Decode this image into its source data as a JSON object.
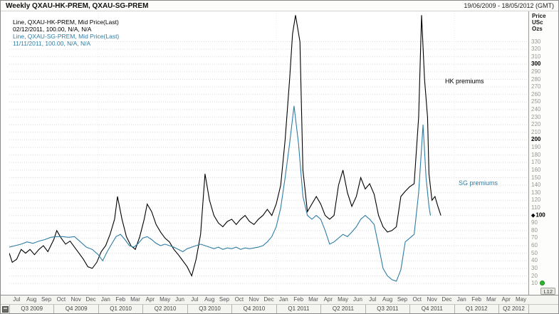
{
  "header": {
    "title": "Weekly QXAU-HK-PREM, QXAU-SG-PREM",
    "date_range": "19/06/2009 - 18/05/2012 (GMT)"
  },
  "legend": {
    "rows": [
      {
        "text": "Line, QXAU-HK-PREM, Mid Price(Last)",
        "series": "hk"
      },
      {
        "text": "02/12/2011, 100.00, N/A, N/A",
        "series": "hk"
      },
      {
        "text": "Line, QXAU-SG-PREM, Mid Price(Last)",
        "series": "sg"
      },
      {
        "text": "11/11/2011, 100.00, N/A, N/A",
        "series": "sg"
      }
    ]
  },
  "annotations": {
    "hk_label": "HK premiums",
    "sg_label": "SG premiums"
  },
  "y_axis": {
    "unit_line1": "Price",
    "unit_line2": "USc",
    "unit_line3": "Ozs"
  },
  "widgets": {
    "layout_badge": "L12",
    "status_color": "#2db52d"
  },
  "chart_data": {
    "type": "line",
    "title": "Weekly QXAU-HK-PREM, QXAU-SG-PREM",
    "ylabel": "Price USc Ozs",
    "x_range": [
      0,
      35
    ],
    "ylim": [
      -5,
      370
    ],
    "yticks": {
      "min": 10,
      "max": 330,
      "step": 10,
      "bold": [
        100,
        200,
        300
      ]
    },
    "last_price_marker": 100,
    "year_gridlines": [
      6,
      18,
      30
    ],
    "grid": "horizontal-dotted",
    "legend_position": "top-left",
    "x_axis": {
      "months": [
        "Jul",
        "Aug",
        "Sep",
        "Oct",
        "Nov",
        "Dec",
        "Jan",
        "Feb",
        "Mar",
        "Apr",
        "May",
        "Jun",
        "Jul",
        "Aug",
        "Sep",
        "Oct",
        "Nov",
        "Dec",
        "Jan",
        "Feb",
        "Mar",
        "Apr",
        "May",
        "Jun",
        "Jul",
        "Aug",
        "Sep",
        "Oct",
        "Nov",
        "Dec",
        "Jan",
        "Feb",
        "Mar",
        "Apr",
        "May"
      ],
      "quarters": [
        {
          "label": "Q3 2009",
          "months": 3
        },
        {
          "label": "Q4 2009",
          "months": 3
        },
        {
          "label": "Q1 2010",
          "months": 3
        },
        {
          "label": "Q2 2010",
          "months": 3
        },
        {
          "label": "Q3 2010",
          "months": 3
        },
        {
          "label": "Q4 2010",
          "months": 3
        },
        {
          "label": "Q1 2011",
          "months": 3
        },
        {
          "label": "Q2 2011",
          "months": 3
        },
        {
          "label": "Q3 2011",
          "months": 3
        },
        {
          "label": "Q4 2011",
          "months": 3
        },
        {
          "label": "Q1 2012",
          "months": 3
        },
        {
          "label": "Q2 2012",
          "months": 2
        }
      ]
    },
    "series": [
      {
        "name": "HK premiums",
        "instrument": "QXAU-HK-PREM",
        "color": "#000000",
        "points": [
          [
            0,
            50
          ],
          [
            0.2,
            38
          ],
          [
            0.5,
            42
          ],
          [
            0.8,
            55
          ],
          [
            1.1,
            50
          ],
          [
            1.4,
            55
          ],
          [
            1.7,
            48
          ],
          [
            2,
            55
          ],
          [
            2.3,
            60
          ],
          [
            2.6,
            52
          ],
          [
            3,
            68
          ],
          [
            3.2,
            80
          ],
          [
            3.5,
            70
          ],
          [
            3.8,
            62
          ],
          [
            4.1,
            66
          ],
          [
            4.4,
            58
          ],
          [
            4.7,
            50
          ],
          [
            5,
            42
          ],
          [
            5.3,
            32
          ],
          [
            5.6,
            30
          ],
          [
            5.9,
            38
          ],
          [
            6.2,
            52
          ],
          [
            6.5,
            60
          ],
          [
            6.8,
            75
          ],
          [
            7.1,
            95
          ],
          [
            7.3,
            125
          ],
          [
            7.6,
            95
          ],
          [
            7.9,
            72
          ],
          [
            8.2,
            60
          ],
          [
            8.5,
            55
          ],
          [
            8.8,
            72
          ],
          [
            9.1,
            95
          ],
          [
            9.3,
            115
          ],
          [
            9.6,
            105
          ],
          [
            9.9,
            88
          ],
          [
            10.2,
            78
          ],
          [
            10.5,
            70
          ],
          [
            10.8,
            65
          ],
          [
            11.1,
            55
          ],
          [
            11.4,
            48
          ],
          [
            11.7,
            40
          ],
          [
            12,
            32
          ],
          [
            12.3,
            20
          ],
          [
            12.6,
            42
          ],
          [
            12.9,
            75
          ],
          [
            13.2,
            155
          ],
          [
            13.5,
            120
          ],
          [
            13.8,
            100
          ],
          [
            14.1,
            90
          ],
          [
            14.4,
            85
          ],
          [
            14.7,
            92
          ],
          [
            15,
            95
          ],
          [
            15.3,
            88
          ],
          [
            15.6,
            95
          ],
          [
            15.9,
            100
          ],
          [
            16.2,
            92
          ],
          [
            16.5,
            88
          ],
          [
            16.8,
            95
          ],
          [
            17.1,
            100
          ],
          [
            17.4,
            108
          ],
          [
            17.7,
            100
          ],
          [
            18,
            115
          ],
          [
            18.3,
            140
          ],
          [
            18.6,
            200
          ],
          [
            18.9,
            280
          ],
          [
            19.1,
            340
          ],
          [
            19.3,
            365
          ],
          [
            19.6,
            330
          ],
          [
            19.8,
            160
          ],
          [
            20.1,
            105
          ],
          [
            20.4,
            115
          ],
          [
            20.7,
            125
          ],
          [
            21,
            115
          ],
          [
            21.3,
            100
          ],
          [
            21.6,
            95
          ],
          [
            21.9,
            100
          ],
          [
            22.2,
            140
          ],
          [
            22.5,
            160
          ],
          [
            22.8,
            130
          ],
          [
            23.1,
            112
          ],
          [
            23.4,
            125
          ],
          [
            23.7,
            150
          ],
          [
            24,
            135
          ],
          [
            24.3,
            142
          ],
          [
            24.6,
            128
          ],
          [
            24.9,
            100
          ],
          [
            25.2,
            85
          ],
          [
            25.5,
            78
          ],
          [
            25.8,
            80
          ],
          [
            26.1,
            85
          ],
          [
            26.4,
            125
          ],
          [
            26.7,
            132
          ],
          [
            27,
            138
          ],
          [
            27.3,
            142
          ],
          [
            27.6,
            230
          ],
          [
            27.8,
            365
          ],
          [
            28,
            280
          ],
          [
            28.2,
            230
          ],
          [
            28.3,
            155
          ],
          [
            28.5,
            120
          ],
          [
            28.7,
            125
          ],
          [
            28.9,
            112
          ],
          [
            29.1,
            100
          ]
        ]
      },
      {
        "name": "SG premiums",
        "instrument": "QXAU-SG-PREM",
        "color": "#2e7da4",
        "points": [
          [
            0,
            58
          ],
          [
            0.4,
            60
          ],
          [
            0.8,
            62
          ],
          [
            1.2,
            65
          ],
          [
            1.6,
            63
          ],
          [
            2,
            66
          ],
          [
            2.4,
            68
          ],
          [
            2.8,
            71
          ],
          [
            3.2,
            72
          ],
          [
            3.6,
            72
          ],
          [
            4,
            71
          ],
          [
            4.4,
            72
          ],
          [
            4.8,
            65
          ],
          [
            5.2,
            58
          ],
          [
            5.6,
            55
          ],
          [
            6,
            48
          ],
          [
            6.3,
            40
          ],
          [
            6.6,
            52
          ],
          [
            6.9,
            62
          ],
          [
            7.2,
            72
          ],
          [
            7.5,
            75
          ],
          [
            7.8,
            68
          ],
          [
            8.1,
            60
          ],
          [
            8.4,
            58
          ],
          [
            8.7,
            63
          ],
          [
            9,
            70
          ],
          [
            9.3,
            72
          ],
          [
            9.6,
            68
          ],
          [
            9.9,
            63
          ],
          [
            10.2,
            60
          ],
          [
            10.5,
            62
          ],
          [
            10.8,
            60
          ],
          [
            11.1,
            58
          ],
          [
            11.4,
            55
          ],
          [
            11.7,
            52
          ],
          [
            12,
            56
          ],
          [
            12.3,
            58
          ],
          [
            12.6,
            60
          ],
          [
            12.9,
            62
          ],
          [
            13.2,
            60
          ],
          [
            13.5,
            58
          ],
          [
            13.8,
            56
          ],
          [
            14.1,
            58
          ],
          [
            14.4,
            55
          ],
          [
            14.7,
            57
          ],
          [
            15,
            56
          ],
          [
            15.3,
            58
          ],
          [
            15.6,
            55
          ],
          [
            15.9,
            57
          ],
          [
            16.2,
            56
          ],
          [
            16.5,
            57
          ],
          [
            16.8,
            58
          ],
          [
            17.1,
            60
          ],
          [
            17.4,
            65
          ],
          [
            17.7,
            72
          ],
          [
            18,
            85
          ],
          [
            18.3,
            110
          ],
          [
            18.6,
            150
          ],
          [
            18.9,
            195
          ],
          [
            19.2,
            245
          ],
          [
            19.5,
            195
          ],
          [
            19.8,
            125
          ],
          [
            20.1,
            100
          ],
          [
            20.4,
            95
          ],
          [
            20.7,
            100
          ],
          [
            21,
            95
          ],
          [
            21.3,
            80
          ],
          [
            21.6,
            62
          ],
          [
            21.9,
            65
          ],
          [
            22.2,
            70
          ],
          [
            22.5,
            75
          ],
          [
            22.8,
            72
          ],
          [
            23.1,
            78
          ],
          [
            23.4,
            85
          ],
          [
            23.7,
            95
          ],
          [
            24,
            100
          ],
          [
            24.3,
            95
          ],
          [
            24.6,
            88
          ],
          [
            24.9,
            60
          ],
          [
            25.2,
            30
          ],
          [
            25.5,
            20
          ],
          [
            25.8,
            15
          ],
          [
            26.1,
            13
          ],
          [
            26.4,
            28
          ],
          [
            26.7,
            65
          ],
          [
            27,
            70
          ],
          [
            27.3,
            75
          ],
          [
            27.6,
            130
          ],
          [
            27.9,
            220
          ],
          [
            28.1,
            150
          ],
          [
            28.3,
            112
          ],
          [
            28.4,
            100
          ]
        ]
      }
    ]
  }
}
